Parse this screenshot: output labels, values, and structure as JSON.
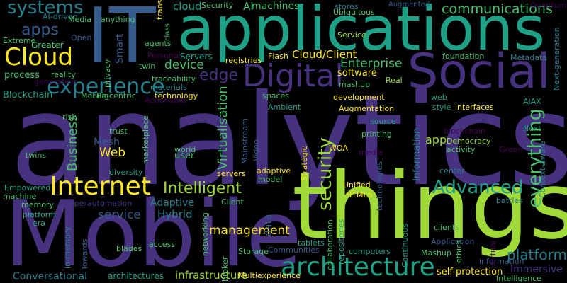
{
  "colors": {
    "background": "#000000",
    "palette": [
      "#440154",
      "#46327e",
      "#365c8d",
      "#277f8e",
      "#1fa187",
      "#4ac16d",
      "#a0da39",
      "#fde725"
    ]
  },
  "words": [
    {
      "text": "analytics",
      "color": "#46327e"
    },
    {
      "text": "things",
      "color": "#a0da39"
    },
    {
      "text": "Mobile",
      "color": "#46327e"
    },
    {
      "text": "applications",
      "color": "#1fa187"
    },
    {
      "text": "IT",
      "color": "#365c8d"
    },
    {
      "text": "Social",
      "color": "#46327e"
    },
    {
      "text": "Digital",
      "color": "#46327e"
    },
    {
      "text": "Internet",
      "color": "#fde725"
    },
    {
      "text": "architecture",
      "color": "#1fa187"
    },
    {
      "text": "Cloud",
      "color": "#fde725"
    },
    {
      "text": "experience",
      "color": "#277f8e"
    },
    {
      "text": "systems",
      "color": "#277f8e"
    },
    {
      "text": "apps",
      "color": "#365c8d"
    },
    {
      "text": "security",
      "color": "#a0da39"
    },
    {
      "text": "Intelligent",
      "color": "#a0da39"
    },
    {
      "text": "Advanced",
      "color": "#1fa187"
    },
    {
      "text": "management",
      "color": "#fde725"
    },
    {
      "text": "everything",
      "color": "#4ac16d"
    },
    {
      "text": "platforms",
      "color": "#277f8e"
    },
    {
      "text": "Virtualisation",
      "color": "#4ac16d"
    },
    {
      "text": "Business",
      "color": "#4ac16d"
    },
    {
      "text": "communications",
      "color": "#4ac16d"
    },
    {
      "text": "Enterprise",
      "color": "#4ac16d"
    },
    {
      "text": "Cloud/Client",
      "color": "#fde725"
    },
    {
      "text": "infrastructure",
      "color": "#a0da39"
    },
    {
      "text": "Web",
      "color": "#fde725"
    },
    {
      "text": "software",
      "color": "#fde725"
    },
    {
      "text": "edge",
      "color": "#46327e"
    },
    {
      "text": "device",
      "color": "#4ac16d"
    },
    {
      "text": "service",
      "color": "#365c8d"
    },
    {
      "text": "Hybrid",
      "color": "#277f8e"
    },
    {
      "text": "Adaptive",
      "color": "#277f8e"
    },
    {
      "text": "Conversational",
      "color": "#277f8e"
    },
    {
      "text": "Blockchain",
      "color": "#1fa187"
    },
    {
      "text": "process",
      "color": "#4ac16d"
    },
    {
      "text": "Immersive",
      "color": "#46327e"
    },
    {
      "text": "Information",
      "color": "#277f8e"
    },
    {
      "text": "Mesh",
      "color": "#365c8d"
    },
    {
      "text": "app",
      "color": "#a0da39"
    },
    {
      "text": "Smart",
      "color": "#365c8d"
    },
    {
      "text": "data",
      "color": "#365c8d"
    },
    {
      "text": "AI",
      "color": "#4ac16d"
    },
    {
      "text": "machines",
      "color": "#4ac16d"
    },
    {
      "text": "cloud",
      "color": "#1fa187"
    },
    {
      "text": "Augmented",
      "color": "#365c8d"
    },
    {
      "text": "stores",
      "color": "#277f8e"
    },
    {
      "text": "Security",
      "color": "#4ac16d"
    },
    {
      "text": "AI-driven",
      "color": "#277f8e"
    },
    {
      "text": "Media",
      "color": "#4ac16d"
    },
    {
      "text": "Open",
      "color": "#365c8d"
    },
    {
      "text": "Extreme",
      "color": "#4ac16d"
    },
    {
      "text": "Greater",
      "color": "#4ac16d"
    },
    {
      "text": "anything",
      "color": "#4ac16d"
    },
    {
      "text": "agents",
      "color": "#4ac16d"
    },
    {
      "text": "Personal",
      "color": "#440154"
    },
    {
      "text": "Servers",
      "color": "#1fa187"
    },
    {
      "text": "twin",
      "color": "#4ac16d"
    },
    {
      "text": "traceability",
      "color": "#4ac16d"
    },
    {
      "text": "materials",
      "color": "#277f8e"
    },
    {
      "text": "technology",
      "color": "#fde725"
    },
    {
      "text": "registries",
      "color": "#fde725"
    },
    {
      "text": "Flash",
      "color": "#fde725"
    },
    {
      "text": "Service",
      "color": "#a0da39"
    },
    {
      "text": "Ubiquitous",
      "color": "#4ac16d"
    },
    {
      "text": "Quantum",
      "color": "#440154"
    },
    {
      "text": "foundation",
      "color": "#4ac16d"
    },
    {
      "text": "Metadata",
      "color": "#277f8e"
    },
    {
      "text": "Next-generation",
      "color": "#277f8e"
    },
    {
      "text": "mashup",
      "color": "#4ac16d"
    },
    {
      "text": "Real",
      "color": "#a0da39"
    },
    {
      "text": "style",
      "color": "#1fa187"
    },
    {
      "text": "web",
      "color": "#1fa187"
    },
    {
      "text": "interfaces",
      "color": "#fde725"
    },
    {
      "text": "AJAX",
      "color": "#1fa187"
    },
    {
      "text": "Augmentation",
      "color": "#fde725"
    },
    {
      "text": "development",
      "color": "#fde725"
    },
    {
      "text": "spaces",
      "color": "#4ac16d"
    },
    {
      "text": "Ambient",
      "color": "#1fa187"
    },
    {
      "text": "source",
      "color": "#1fa187"
    },
    {
      "text": "printing",
      "color": "#4ac16d"
    },
    {
      "text": "blockchain",
      "color": "#440154"
    },
    {
      "text": "Next",
      "color": "#1fa187"
    },
    {
      "text": "Democracy",
      "color": "#a0da39"
    },
    {
      "text": "activity",
      "color": "#4ac16d"
    },
    {
      "text": "Green",
      "color": "#440154"
    },
    {
      "text": "WOA",
      "color": "#fde725"
    },
    {
      "text": "media",
      "color": "#440154"
    },
    {
      "text": "Strategic",
      "color": "#fde725"
    },
    {
      "text": "Mainstream",
      "color": "#365c8d"
    },
    {
      "text": "Video",
      "color": "#365c8d"
    },
    {
      "text": "adaptive",
      "color": "#fde725"
    },
    {
      "text": "model",
      "color": "#4ac16d"
    },
    {
      "text": "servers",
      "color": "#fde725"
    },
    {
      "text": "Unified",
      "color": "#fde725"
    },
    {
      "text": "HTML5",
      "color": "#fde725"
    },
    {
      "text": "Client",
      "color": "#4ac16d"
    },
    {
      "text": "technologies",
      "color": "#365c8d"
    },
    {
      "text": "center",
      "color": "#277f8e"
    },
    {
      "text": "battles",
      "color": "#277f8e"
    },
    {
      "text": "Context-aware",
      "color": "#277f8e"
    },
    {
      "text": "risk",
      "color": "#4ac16d"
    },
    {
      "text": "trust",
      "color": "#4ac16d"
    },
    {
      "text": "marketplace",
      "color": "#4ac16d"
    },
    {
      "text": "world",
      "color": "#4ac16d"
    },
    {
      "text": "user",
      "color": "#4ac16d"
    },
    {
      "text": "twins",
      "color": "#4ac16d"
    },
    {
      "text": "diversity",
      "color": "#1fa187"
    },
    {
      "text": "Empowered",
      "color": "#1fa187"
    },
    {
      "text": "machine",
      "color": "#4ac16d"
    },
    {
      "text": "memory",
      "color": "#4ac16d"
    },
    {
      "text": "platform",
      "color": "#1fa187"
    },
    {
      "text": "era",
      "color": "#1fa187"
    },
    {
      "text": "Hyperautomation",
      "color": "#46327e"
    },
    {
      "text": "Towards",
      "color": "#365c8d"
    },
    {
      "text": "networking",
      "color": "#4ac16d"
    },
    {
      "text": "access",
      "color": "#4ac16d"
    },
    {
      "text": "blades",
      "color": "#4ac16d"
    },
    {
      "text": "in-memory",
      "color": "#277f8e"
    },
    {
      "text": "architectures",
      "color": "#1fa187"
    },
    {
      "text": "Multiexperience",
      "color": "#fde725"
    },
    {
      "text": "Storage",
      "color": "#4ac16d"
    },
    {
      "text": "broker",
      "color": "#4ac16d"
    },
    {
      "text": "Communities",
      "color": "#365c8d"
    },
    {
      "text": "tablets",
      "color": "#1fa187"
    },
    {
      "text": "collaboration",
      "color": "#4ac16d"
    },
    {
      "text": "repositories",
      "color": "#1fa187"
    },
    {
      "text": "computers",
      "color": "#1fa187"
    },
    {
      "text": "Continuous",
      "color": "#1fa187"
    },
    {
      "text": "Application",
      "color": "#365c8d"
    },
    {
      "text": "clients",
      "color": "#4ac16d"
    },
    {
      "text": "ethics",
      "color": "#4ac16d"
    },
    {
      "text": "information",
      "color": "#365c8d"
    },
    {
      "text": "Mashup",
      "color": "#4ac16d"
    },
    {
      "text": "Virtual",
      "color": "#440154"
    },
    {
      "text": "self-protection",
      "color": "#fde725"
    },
    {
      "text": "Intelligence",
      "color": "#4ac16d"
    },
    {
      "text": "Mobile-centric",
      "color": "#4ac16d"
    },
    {
      "text": "Big",
      "color": "#4ac16d"
    },
    {
      "text": "Actionable",
      "color": "#440154"
    },
    {
      "text": "reality",
      "color": "#4ac16d"
    },
    {
      "text": "generation",
      "color": "#440154"
    },
    {
      "text": "privacy",
      "color": "#4ac16d"
    },
    {
      "text": "transparency",
      "color": "#fde725"
    },
    {
      "text": "class",
      "color": "#4ac16d"
    },
    {
      "text": "availability",
      "color": "#4ac16d"
    }
  ]
}
